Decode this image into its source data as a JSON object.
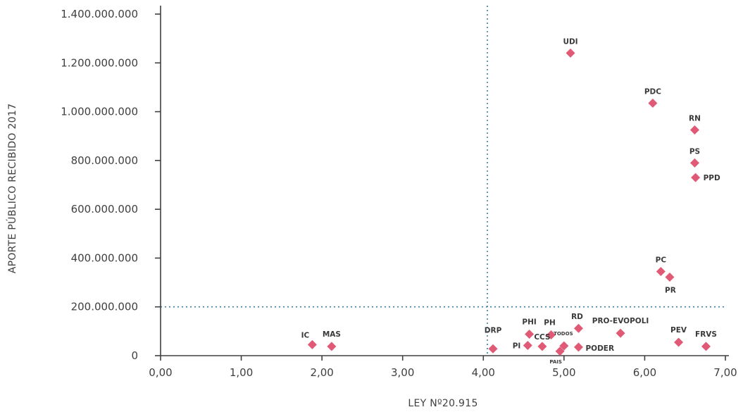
{
  "chart_data": {
    "type": "scatter",
    "xlabel": "LEY Nº20.915",
    "ylabel": "APORTE PÚBLICO RECIBIDO 2017",
    "xlim": [
      0,
      7
    ],
    "ylim": [
      0,
      1400000000
    ],
    "x_ticks": [
      "0,00",
      "1,00",
      "2,00",
      "3,00",
      "4,00",
      "5,00",
      "6,00",
      "7,00"
    ],
    "y_ticks": [
      "0",
      "200.000.000",
      "400.000.000",
      "600.000.000",
      "800.000.000",
      "1.000.000.000",
      "1.200.000.000",
      "1.400.000.000"
    ],
    "reference_lines": {
      "x": 4.05,
      "y": 200000000
    },
    "marker_color": "#e05a76",
    "points": [
      {
        "label": "UDI",
        "x": 5.08,
        "y": 1240000000
      },
      {
        "label": "PDC",
        "x": 6.1,
        "y": 1035000000
      },
      {
        "label": "RN",
        "x": 6.62,
        "y": 925000000
      },
      {
        "label": "PS",
        "x": 6.62,
        "y": 790000000
      },
      {
        "label": "PPD",
        "x": 6.63,
        "y": 730000000
      },
      {
        "label": "PC",
        "x": 6.2,
        "y": 345000000
      },
      {
        "label": "PR",
        "x": 6.31,
        "y": 322000000
      },
      {
        "label": "IC",
        "x": 1.88,
        "y": 45000000
      },
      {
        "label": "MAS",
        "x": 2.12,
        "y": 38000000
      },
      {
        "label": "DRP",
        "x": 4.12,
        "y": 28000000
      },
      {
        "label": "PHI",
        "x": 4.57,
        "y": 88000000
      },
      {
        "label": "PH",
        "x": 4.84,
        "y": 85000000
      },
      {
        "label": "RD",
        "x": 5.18,
        "y": 112000000
      },
      {
        "label": "PRO-EVOPOLI",
        "x": 5.7,
        "y": 92000000
      },
      {
        "label": "PI",
        "x": 4.55,
        "y": 42000000
      },
      {
        "label": "CCS",
        "x": 4.73,
        "y": 38000000
      },
      {
        "label": "TODOS",
        "x": 5.0,
        "y": 40000000
      },
      {
        "label": "PAIS",
        "x": 4.95,
        "y": 18000000
      },
      {
        "label": "PODER",
        "x": 5.18,
        "y": 35000000
      },
      {
        "label": "PEV",
        "x": 6.42,
        "y": 55000000
      },
      {
        "label": "FRVS",
        "x": 6.76,
        "y": 38000000
      }
    ]
  }
}
